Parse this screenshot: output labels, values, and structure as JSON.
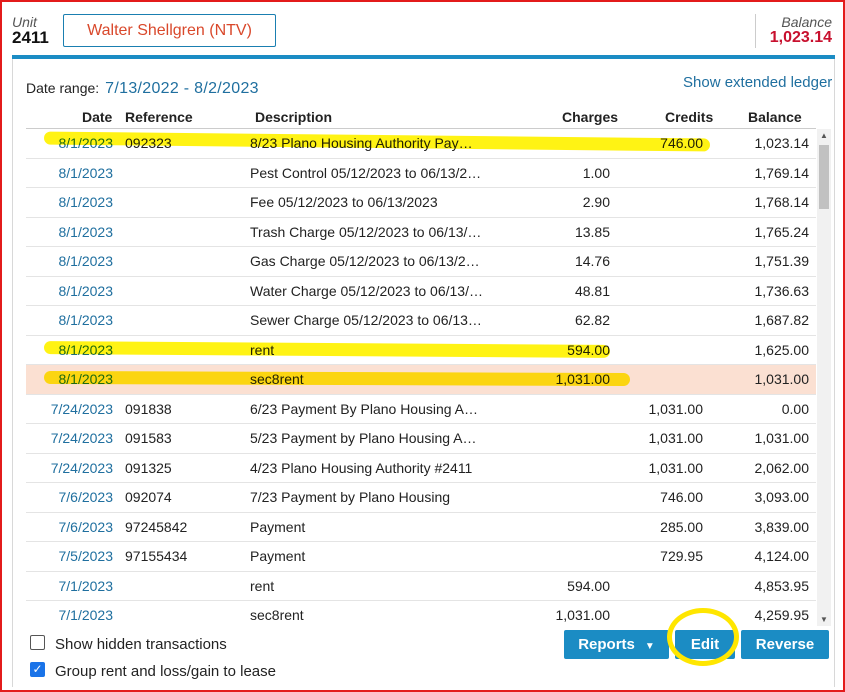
{
  "header": {
    "unit_label": "Unit",
    "unit_number": "2411",
    "tenant_name": "Walter Shellgren (NTV)",
    "balance_label": "Balance",
    "balance_value": "1,023.14"
  },
  "date_range": {
    "label": "Date range:",
    "value": "7/13/2022 - 8/2/2023"
  },
  "extended_ledger_link": "Show extended ledger",
  "columns": {
    "date": "Date",
    "reference": "Reference",
    "description": "Description",
    "charges": "Charges",
    "credits": "Credits",
    "balance": "Balance"
  },
  "rows": [
    {
      "date": "8/1/2023",
      "reference": "092323",
      "description": "8/23 Plano Housing Authority Pay…",
      "charges": "",
      "credits": "746.00",
      "balance": "1,023.14"
    },
    {
      "date": "8/1/2023",
      "reference": "",
      "description": "Pest Control 05/12/2023 to 06/13/2…",
      "charges": "1.00",
      "credits": "",
      "balance": "1,769.14"
    },
    {
      "date": "8/1/2023",
      "reference": "",
      "description": "Fee 05/12/2023 to 06/13/2023",
      "charges": "2.90",
      "credits": "",
      "balance": "1,768.14"
    },
    {
      "date": "8/1/2023",
      "reference": "",
      "description": "Trash Charge 05/12/2023 to 06/13/…",
      "charges": "13.85",
      "credits": "",
      "balance": "1,765.24"
    },
    {
      "date": "8/1/2023",
      "reference": "",
      "description": "Gas Charge 05/12/2023 to 06/13/2…",
      "charges": "14.76",
      "credits": "",
      "balance": "1,751.39"
    },
    {
      "date": "8/1/2023",
      "reference": "",
      "description": "Water Charge 05/12/2023 to 06/13/…",
      "charges": "48.81",
      "credits": "",
      "balance": "1,736.63"
    },
    {
      "date": "8/1/2023",
      "reference": "",
      "description": "Sewer Charge 05/12/2023 to 06/13…",
      "charges": "62.82",
      "credits": "",
      "balance": "1,687.82"
    },
    {
      "date": "8/1/2023",
      "reference": "",
      "description": "rent",
      "charges": "594.00",
      "credits": "",
      "balance": "1,625.00"
    },
    {
      "date": "8/1/2023",
      "reference": "",
      "description": "sec8rent",
      "charges": "1,031.00",
      "credits": "",
      "balance": "1,031.00"
    },
    {
      "date": "7/24/2023",
      "reference": "091838",
      "description": "6/23 Payment By Plano Housing A…",
      "charges": "",
      "credits": "1,031.00",
      "balance": "0.00"
    },
    {
      "date": "7/24/2023",
      "reference": "091583",
      "description": "5/23 Payment by Plano Housing A…",
      "charges": "",
      "credits": "1,031.00",
      "balance": "1,031.00"
    },
    {
      "date": "7/24/2023",
      "reference": "091325",
      "description": "4/23 Plano Housing Authority #2411",
      "charges": "",
      "credits": "1,031.00",
      "balance": "2,062.00"
    },
    {
      "date": "7/6/2023",
      "reference": "092074",
      "description": "7/23 Payment by Plano Housing",
      "charges": "",
      "credits": "746.00",
      "balance": "3,093.00"
    },
    {
      "date": "7/6/2023",
      "reference": "97245842",
      "description": "Payment",
      "charges": "",
      "credits": "285.00",
      "balance": "3,839.00"
    },
    {
      "date": "7/5/2023",
      "reference": "97155434",
      "description": "Payment",
      "charges": "",
      "credits": "729.95",
      "balance": "4,124.00"
    },
    {
      "date": "7/1/2023",
      "reference": "",
      "description": "rent",
      "charges": "594.00",
      "credits": "",
      "balance": "4,853.95"
    },
    {
      "date": "7/1/2023",
      "reference": "",
      "description": "sec8rent",
      "charges": "1,031.00",
      "credits": "",
      "balance": "4,259.95"
    }
  ],
  "selected_row_index": 8,
  "options": {
    "show_hidden_label": "Show hidden transactions",
    "show_hidden_checked": false,
    "group_rent_label": "Group rent and loss/gain to lease",
    "group_rent_checked": true
  },
  "buttons": {
    "reports": "Reports",
    "edit": "Edit",
    "reverse": "Reverse"
  },
  "colors": {
    "accent": "#1b8cc4",
    "balance_red": "#c8102e",
    "tenant_name": "#d9482b",
    "selected_row": "#fbe0d2",
    "annotation_highlight": "#ffe600"
  }
}
